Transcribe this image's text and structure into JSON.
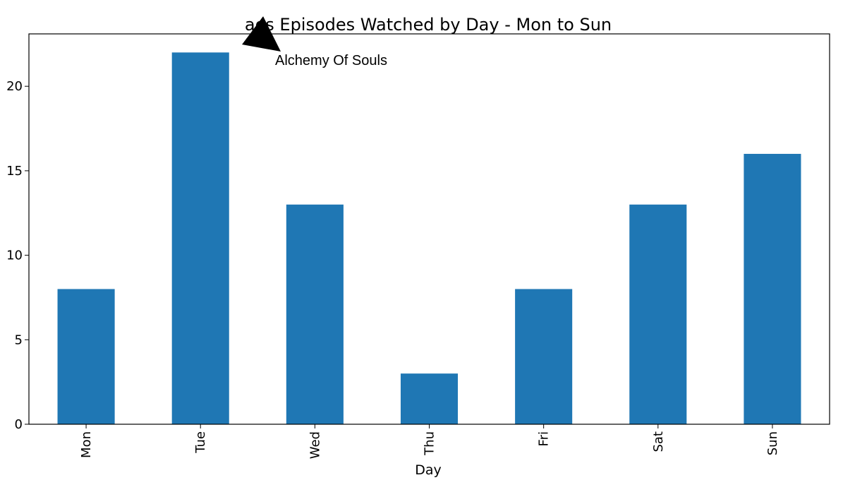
{
  "chart_data": {
    "type": "bar",
    "title": "aos Episodes Watched by Day - Mon to Sun",
    "xlabel": "Day",
    "ylabel": "",
    "categories": [
      "Mon",
      "Tue",
      "Wed",
      "Thu",
      "Fri",
      "Sat",
      "Sun"
    ],
    "values": [
      8,
      22,
      13,
      3,
      8,
      13,
      16
    ],
    "ylim": [
      0,
      23.1
    ],
    "yticks": [
      0,
      5,
      10,
      15,
      20
    ],
    "grid": false,
    "bar_color": "#1f77b4",
    "annotation": {
      "text": "Alchemy Of Souls",
      "points_to": "top of chart near title"
    }
  }
}
